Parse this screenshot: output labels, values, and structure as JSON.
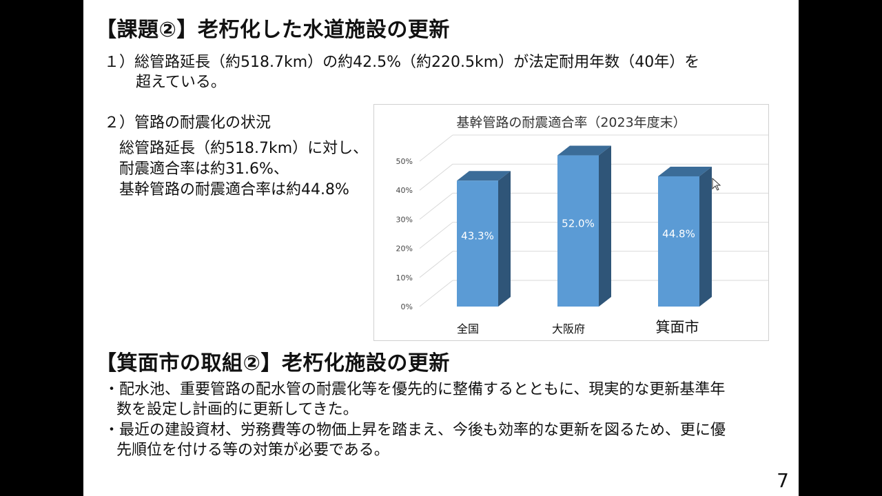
{
  "section1": {
    "heading": "【課題②】老朽化した水道施設の更新",
    "item1_line1": "１）総管路延長（約518.7km）の約42.5%（約220.5km）が法定耐用年数（40年）を",
    "item1_line2": "超えている。",
    "item2_title": "２）管路の耐震化の状況",
    "item2_line1": "総管路延長（約518.7km）に対し、",
    "item2_line2": "耐震適合率は約31.6%、",
    "item2_line3": "基幹管路の耐震適合率は約44.8%"
  },
  "chart_data": {
    "type": "bar",
    "title": "基幹管路の耐震適合率（2023年度末）",
    "categories": [
      "全国",
      "大阪府",
      "箕面市"
    ],
    "values": [
      43.3,
      52.0,
      44.8
    ],
    "value_labels": [
      "43.3%",
      "52.0%",
      "44.8%"
    ],
    "y_ticks": [
      "0%",
      "10%",
      "20%",
      "30%",
      "40%",
      "50%"
    ],
    "ylim": [
      0,
      50
    ],
    "xlabel": "",
    "ylabel": "",
    "colors": {
      "bar_front": "#5b9bd5",
      "bar_side": "#2f5578",
      "bar_top": "#3b6c98"
    }
  },
  "section2": {
    "heading": "【箕面市の取組②】老朽化施設の更新",
    "bullet1_line1": "・配水池、重要管路の配水管の耐震化等を優先的に整備するとともに、現実的な更新基準年",
    "bullet1_line2": "数を設定し計画的に更新してきた。",
    "bullet2_line1": "・最近の建設資材、労務費等の物価上昇を踏まえ、今後も効率的な更新を図るため、更に優",
    "bullet2_line2": "先順位を付ける等の対策が必要である。"
  },
  "footer": {
    "page_number": "7"
  }
}
